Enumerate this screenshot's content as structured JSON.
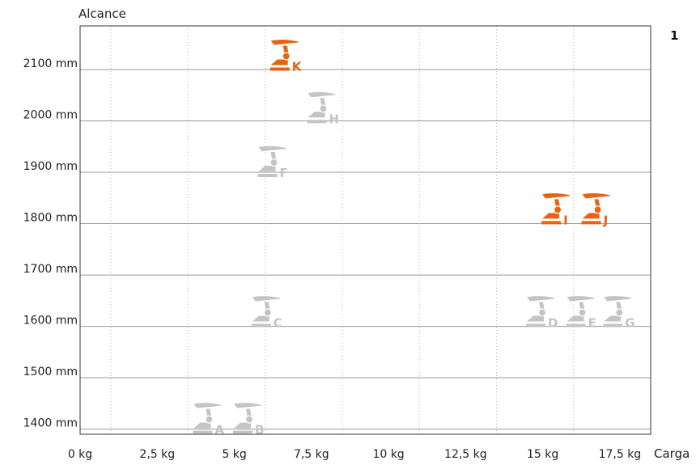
{
  "chart_data": {
    "type": "scatter",
    "panel_number": "1",
    "xlabel": "Carga",
    "ylabel": "Alcance",
    "xlim": [
      0,
      18.5
    ],
    "ylim": [
      1390,
      2185
    ],
    "x_ticks": [
      0,
      2.5,
      5,
      7.5,
      10,
      12.5,
      15,
      17.5
    ],
    "x_tick_labels": [
      "0 kg",
      "2,5 kg",
      "5 kg",
      "7,5 kg",
      "10 kg",
      "12,5 kg",
      "15 kg",
      "17,5 kg"
    ],
    "x_gridlines": [
      1,
      3.5,
      6,
      8.5,
      11,
      13.5,
      16
    ],
    "y_ticks": [
      1400,
      1500,
      1600,
      1700,
      1800,
      1900,
      2000,
      2100
    ],
    "y_tick_labels": [
      "1400 mm",
      "1500 mm",
      "1600 mm",
      "1700 mm",
      "1800 mm",
      "1900 mm",
      "2000 mm",
      "2100 mm"
    ],
    "grid": true,
    "colors": {
      "highlight": "#e8620f",
      "regular": "#c4c4c4",
      "frame": "#333333",
      "gridline": "#999999"
    },
    "points": [
      {
        "label": "A",
        "x": 4,
        "y": 1419,
        "highlight": false
      },
      {
        "label": "B",
        "x": 5.3,
        "y": 1419,
        "highlight": false
      },
      {
        "label": "C",
        "x": 5.9,
        "y": 1627,
        "highlight": false
      },
      {
        "label": "D",
        "x": 14.8,
        "y": 1627,
        "highlight": false
      },
      {
        "label": "E",
        "x": 16.1,
        "y": 1627,
        "highlight": false
      },
      {
        "label": "G",
        "x": 17.3,
        "y": 1627,
        "highlight": false
      },
      {
        "label": "F",
        "x": 6.1,
        "y": 1919,
        "highlight": false
      },
      {
        "label": "H",
        "x": 7.7,
        "y": 2024,
        "highlight": false
      },
      {
        "label": "K",
        "x": 6.5,
        "y": 2126,
        "highlight": true
      },
      {
        "label": "I",
        "x": 15.3,
        "y": 1827,
        "highlight": true
      },
      {
        "label": "J",
        "x": 16.6,
        "y": 1827,
        "highlight": true
      }
    ]
  }
}
